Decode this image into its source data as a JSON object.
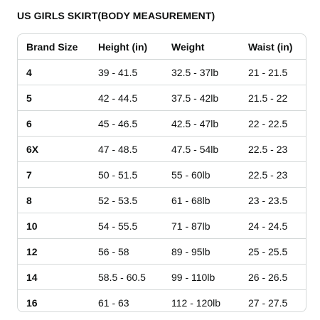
{
  "title": "US GIRLS SKIRT(BODY MEASUREMENT)",
  "table": {
    "headers": [
      "Brand Size",
      "Height (in)",
      "Weight",
      "Waist (in)"
    ],
    "rows": [
      [
        "4",
        "39 - 41.5",
        "32.5 - 37lb",
        "21 - 21.5"
      ],
      [
        "5",
        "42 - 44.5",
        "37.5 - 42lb",
        "21.5 - 22"
      ],
      [
        "6",
        "45 - 46.5",
        "42.5 - 47lb",
        "22 - 22.5"
      ],
      [
        "6X",
        "47 - 48.5",
        "47.5 - 54lb",
        "22.5 - 23"
      ],
      [
        "7",
        "50 - 51.5",
        "55 - 60lb",
        "22.5 - 23"
      ],
      [
        "8",
        "52 - 53.5",
        "61 - 68lb",
        "23 - 23.5"
      ],
      [
        "10",
        "54 - 55.5",
        "71 - 87lb",
        "24 - 24.5"
      ],
      [
        "12",
        "56 - 58",
        "89 - 95lb",
        "25 - 25.5"
      ],
      [
        "14",
        "58.5 - 60.5",
        "99 - 110lb",
        "26 - 26.5"
      ],
      [
        "16",
        "61 - 63",
        "112 - 120lb",
        "27 - 27.5"
      ]
    ]
  }
}
